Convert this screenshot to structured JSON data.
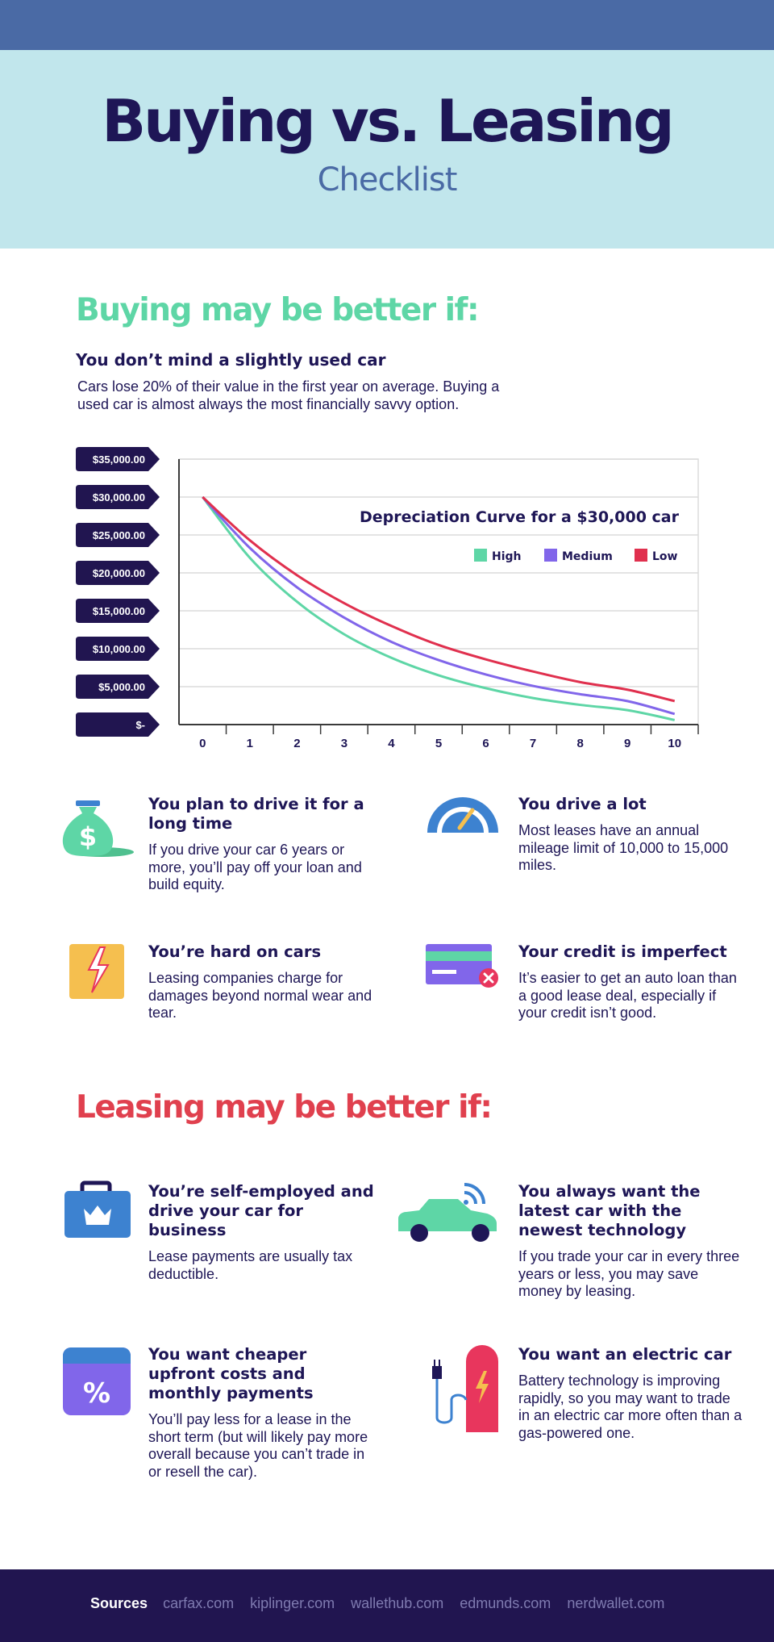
{
  "header": {
    "title": "Buying vs. Leasing",
    "subtitle": "Checklist"
  },
  "buying": {
    "title": "Buying may be better if:",
    "intro": {
      "heading": "You don’t mind a slightly used car",
      "body": "Cars lose 20% of their value in the first year on average. Buying a used car is almost always the most financially savvy option."
    },
    "items": [
      {
        "icon": "money-bag-icon",
        "heading": "You plan to drive it for a long time",
        "body": "If you drive your car 6 years or more, you’ll pay off your loan and build equity."
      },
      {
        "icon": "speedometer-icon",
        "heading": "You drive a lot",
        "body": "Most leases have an annual mileage limit of 10,000 to 15,000 miles."
      },
      {
        "icon": "damage-box-icon",
        "heading": "You’re hard on cars",
        "body": "Leasing companies charge for damages beyond normal wear and tear."
      },
      {
        "icon": "credit-card-icon",
        "heading": "Your credit is imperfect",
        "body": "It’s easier to get an auto loan than a good lease deal, especially if your credit isn’t good."
      }
    ]
  },
  "leasing": {
    "title": "Leasing may be better if:",
    "items": [
      {
        "icon": "briefcase-icon",
        "heading": "You’re self-employed and drive your car for business",
        "body": "Lease payments are usually tax deductible."
      },
      {
        "icon": "connected-car-icon",
        "heading": "You always want the latest car with the newest technology",
        "body": "If you trade your car in every three years or less, you may save money by leasing."
      },
      {
        "icon": "percent-icon",
        "heading": "You want cheaper upfront costs and monthly payments",
        "body": "You’ll pay less for a lease in the short term (but will likely pay more overall because you can’t trade in or resell the car)."
      },
      {
        "icon": "ev-charger-icon",
        "heading": "You want an electric car",
        "body": "Battery technology is improving rapidly, so you may want to trade in an electric car more often than a gas-powered one."
      }
    ]
  },
  "chart_data": {
    "type": "line",
    "title": "Depreciation Curve for a $30,000 car",
    "x": [
      0,
      1,
      2,
      3,
      4,
      5,
      6,
      7,
      8,
      9,
      10
    ],
    "y_tick_labels": [
      "$-",
      "$5,000.00",
      "$10,000.00",
      "$15,000.00",
      "$20,000.00",
      "$25,000.00",
      "$30,000.00",
      "$35,000.00"
    ],
    "y_ticks": [
      0,
      5000,
      10000,
      15000,
      20000,
      25000,
      30000,
      35000
    ],
    "ylim": [
      0,
      35000
    ],
    "xlim": [
      0,
      10
    ],
    "grid": true,
    "legend": "top-right",
    "series": [
      {
        "name": "High",
        "color": "#5ed6a6",
        "values": [
          30000,
          22000,
          16200,
          11900,
          8800,
          6500,
          4800,
          3500,
          2600,
          1900,
          600
        ]
      },
      {
        "name": "Medium",
        "color": "#8166ea",
        "values": [
          30000,
          23300,
          18100,
          14100,
          10900,
          8500,
          6600,
          5100,
          4000,
          3100,
          1400
        ]
      },
      {
        "name": "Low",
        "color": "#e0304e",
        "values": [
          30000,
          24300,
          19700,
          16000,
          13000,
          10500,
          8600,
          7000,
          5600,
          4600,
          3100
        ]
      }
    ]
  },
  "footer": {
    "label": "Sources",
    "sources": [
      "carfax.com",
      "kiplinger.com",
      "wallethub.com",
      "edmunds.com",
      "nerdwallet.com"
    ]
  },
  "colors": {
    "navy": "#1e1656",
    "green": "#5ed6a6",
    "red": "#e0404e",
    "blue": "#4a6aa5",
    "light_blue": "#c1e6ec",
    "purple": "#8166ea",
    "icon_blue": "#3d82d0",
    "yellow": "#f5bf4f",
    "pink": "#e8365d"
  }
}
